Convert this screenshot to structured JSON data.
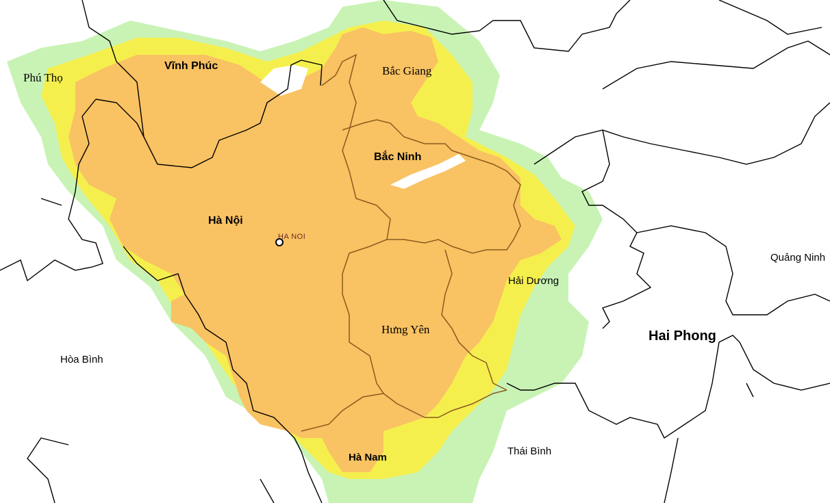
{
  "map": {
    "colors": {
      "background": "#ffffff",
      "coverage_high": "#f9c262",
      "coverage_mid": "#f5ef4e",
      "coverage_low": "#c8f3b5",
      "boundary_major": "#000000",
      "boundary_internal": "#8a5a1e",
      "city_marker": "#6a2b2b"
    },
    "provinces": [
      {
        "key": "phu_tho",
        "label": "Phú Thọ"
      },
      {
        "key": "vinh_phuc",
        "label": "Vĩnh Phúc"
      },
      {
        "key": "bac_giang",
        "label": "Bắc Giang"
      },
      {
        "key": "bac_ninh",
        "label": "Bắc Ninh"
      },
      {
        "key": "ha_noi",
        "label": "Hà Nội"
      },
      {
        "key": "quang_ninh",
        "label": "Quảng Ninh"
      },
      {
        "key": "hai_duong",
        "label": "Hải Dương"
      },
      {
        "key": "hung_yen",
        "label": "Hưng Yên"
      },
      {
        "key": "hai_phong",
        "label": "Hai Phong"
      },
      {
        "key": "hoa_binh",
        "label": "Hòa Bình"
      },
      {
        "key": "thai_binh",
        "label": "Thái Bình"
      },
      {
        "key": "ha_nam",
        "label": "Hà Nam"
      }
    ],
    "city": {
      "label": "HA NOI",
      "icon": "city-marker-icon"
    }
  }
}
